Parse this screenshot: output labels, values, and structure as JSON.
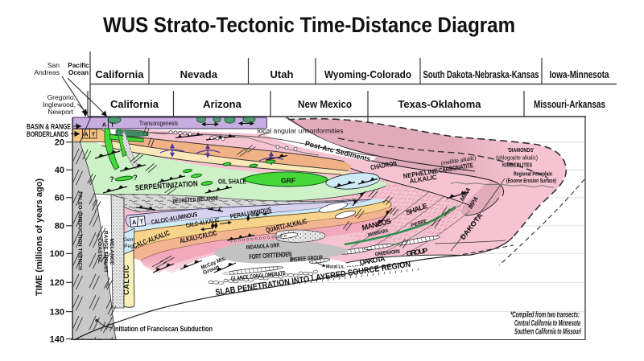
{
  "title": "WUS Strato-Tectonic Time-Distance Diagram",
  "header": {
    "row1": [
      "California",
      "Nevada",
      "Utah",
      "Wyoming-Colorado",
      "South Dakota-Nebraska-Kansas",
      "Iowa-Minnesota"
    ],
    "row2": [
      "California",
      "Arizona",
      "New Mexico",
      "Texas-Oklahoma",
      "Missouri-Arkansas"
    ]
  },
  "axis": {
    "label": "TIME  (millions of years ago)",
    "ticks": [
      "20",
      "40",
      "60",
      "80",
      "100",
      "120",
      "130",
      "140"
    ]
  },
  "annotations": {
    "san_andreas_1": "San",
    "san_andreas_2": "Andreas",
    "pacific_1": "Pacific",
    "pacific_2": "Ocean",
    "gregorio_1": "Gregorio,",
    "gregorio_2": "Inglewood,",
    "gregorio_3": "Newport",
    "basin_range": "BASIN & RANGE",
    "borderlands": "BORDERLANDS"
  },
  "labels": {
    "transorogenesis": "Transorogenesis",
    "a": "A",
    "t": "T",
    "local_unconformities": "local angular unconformities",
    "post_arc": "Post-Arc Sediments",
    "serpentinization": "SERPENTINIZATION",
    "question": "?",
    "oil_shale": "OIL SHALE",
    "grf": "GRF",
    "decreted_melange": "DECRETED MELANGE",
    "calcic_aluminous": "CALCIC-ALUMINOUS",
    "peraluminous": "PERALUMINOUS",
    "calc_alkalic": "CALC-ALKALIC",
    "alkali_calcic": "ALKALI-CALCIC",
    "quartz_alkalic": "QUARTZ-ALKALIC",
    "mccoy_1": "McCoy Mts.",
    "mccoy_2": "Group",
    "indanola": "INDANOLA GRP.",
    "fort_crittenden": "FORT CRITTENDEN",
    "bisbee": "BISBEE GROUP",
    "mural": "Mural Ls.",
    "glance": "GLANCE CONGLOMERATE",
    "dakota": "DAKOTA",
    "greenhorn": "GREENHORN",
    "group": "GROUP",
    "mancos": "MANCOS",
    "niobrara": "NIOBRARA",
    "shale": "SHALE",
    "pierre": "PIERRE",
    "chadron": "CHADRON",
    "nepheline": "NEPHELINE",
    "alkalic": "ALKALIC",
    "melilite": "(melilite alkalic)",
    "carbonatite": "CARBONATITE",
    "diamonds": "'DIAMONDS'",
    "phlogopite": "(phlogopite alkalic)",
    "kimberlites": "KIMBERLITES",
    "peneplain_1": "Regional Peneplain",
    "peneplain_2": "(Eocene Erosion Surface)",
    "mma": "MMA",
    "mpa": "MPA",
    "slab": "SLAB PENETRATION INTO LAYERED SOURCE REGION",
    "franciscan": "Initiation of Franciscan Subduction",
    "calcic": "CALCIC",
    "gem_1": "Gem",
    "gem_2": "Peg",
    "paleo_trench": "PALEO-SUBDUCTION TRENCH",
    "coastal_1": "COASTAL",
    "coastal_2": "RANGE THRUST",
    "coastal_3": "MELANGE"
  },
  "note": {
    "line1": "*Compiled from two transects:",
    "line2": "Central California to Minnesota",
    "line3": "Southern California to Missouri"
  },
  "colors": {
    "purple_band": "#c7aee1",
    "pink_blob": "#f6c3d2",
    "dusky_pink": "#e2abbc",
    "orange_band": "#f0b185",
    "cream_band": "#fce7b8",
    "pale_green": "#cdf2c8",
    "bright_green": "#46d838",
    "dark_green": "#3e8f63",
    "light_blue": "#cfeaf7",
    "lavender": "#d7d3ee",
    "yellow_band": "#f8d38c",
    "salmon_band": "#f3b492",
    "mccoy_pink": "#f3a9bb",
    "gray": "#c9c9c9",
    "calcic_yellow": "#f8f1b7",
    "blue_cross": "#4636a8",
    "green_text": "#1e7a3c"
  }
}
